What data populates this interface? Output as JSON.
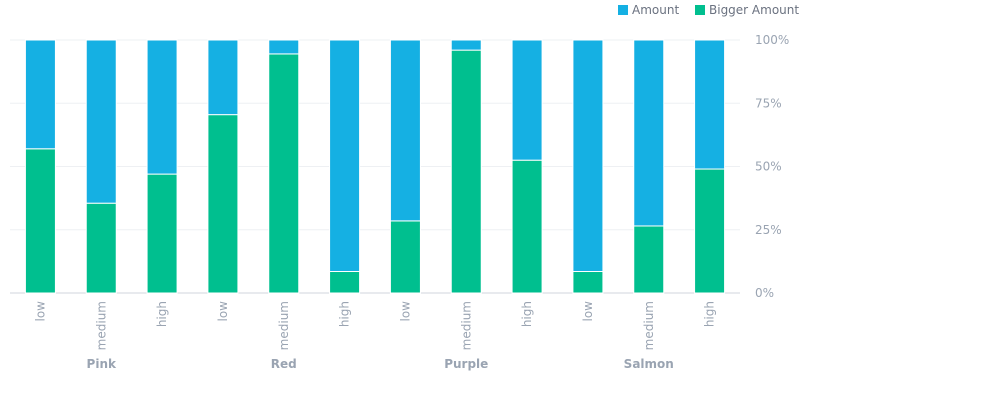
{
  "chart_data": {
    "type": "bar",
    "stacked": "percent",
    "categories": [
      "low",
      "medium",
      "high",
      "low",
      "medium",
      "high",
      "low",
      "medium",
      "high",
      "low",
      "medium",
      "high"
    ],
    "groups": [
      {
        "label": "Pink",
        "span": 3
      },
      {
        "label": "Red",
        "span": 3
      },
      {
        "label": "Purple",
        "span": 3
      },
      {
        "label": "Salmon",
        "span": 3
      }
    ],
    "series": [
      {
        "name": "Bigger Amount",
        "color": "#00bf8f",
        "values": [
          57,
          35.5,
          47,
          70.5,
          94.5,
          8.5,
          28.5,
          96,
          52.5,
          8.5,
          26.5,
          49
        ]
      },
      {
        "name": "Amount",
        "color": "#15b0e3",
        "values": [
          43,
          64.5,
          53,
          29.5,
          5.5,
          91.5,
          71.5,
          4,
          47.5,
          91.5,
          73.5,
          51
        ]
      }
    ],
    "legend": [
      "Amount",
      "Bigger Amount"
    ],
    "y_ticks": [
      "0%",
      "25%",
      "50%",
      "75%",
      "100%"
    ],
    "ylim": [
      0,
      100
    ],
    "legend_position": "top-right",
    "y_axis_position": "right",
    "grid": true
  }
}
